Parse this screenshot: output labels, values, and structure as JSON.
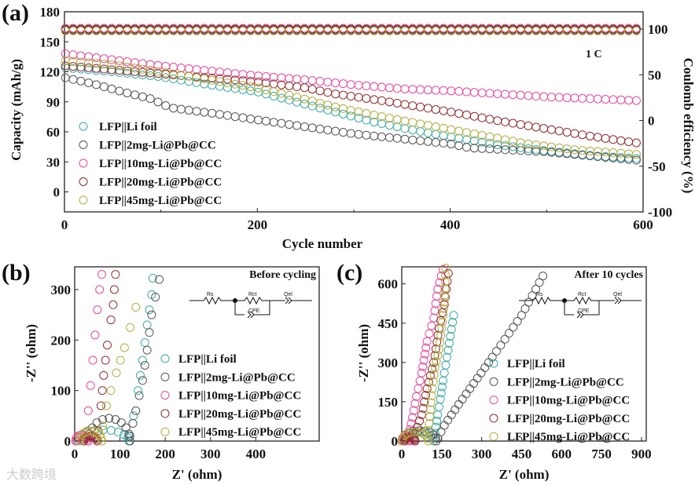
{
  "colors": {
    "li_foil": "#3aa9a9",
    "2mg": "#555555",
    "10mg": "#e8459b",
    "20mg": "#8e2b30",
    "45mg": "#b3ad3f"
  },
  "watermark": "大数跨境",
  "chart_data": [
    {
      "panel_label": "(a)",
      "type": "scatter",
      "xlabel": "Cycle number",
      "ylabel": "Capacity (mAh/g)",
      "ylabel_right": "Coulomb efficiency (%)",
      "xlim": [
        0,
        600
      ],
      "ylim": [
        -20,
        180
      ],
      "ylim_right": [
        -100,
        119
      ],
      "xticks": [
        "0",
        "200",
        "400",
        "600"
      ],
      "yticks": [
        "0",
        "30",
        "60",
        "90",
        "120",
        "150",
        "180"
      ],
      "yticks_right": [
        "-100",
        "-50",
        "0",
        "50",
        "100"
      ],
      "annotation": "1 C",
      "legend_placement": "bottom-left",
      "series": [
        {
          "key": "li_foil",
          "name": "LFP||Li  foil",
          "coulomb_efficiency": 99,
          "capacity": [
            [
              1,
              124
            ],
            [
              50,
              120
            ],
            [
              100,
              115
            ],
            [
              150,
              107
            ],
            [
              200,
              100
            ],
            [
              240,
              90
            ],
            [
              280,
              80
            ],
            [
              320,
              70
            ],
            [
              360,
              62
            ],
            [
              400,
              55
            ],
            [
              450,
              47
            ],
            [
              500,
              41
            ],
            [
              550,
              36
            ],
            [
              600,
              33
            ]
          ]
        },
        {
          "key": "2mg",
          "name": "LFP||2mg-Li@Pb@CC",
          "coulomb_efficiency": 99,
          "capacity": [
            [
              1,
              114
            ],
            [
              30,
              108
            ],
            [
              60,
              100
            ],
            [
              90,
              93
            ],
            [
              110,
              84
            ],
            [
              150,
              79
            ],
            [
              200,
              72
            ],
            [
              250,
              65
            ],
            [
              300,
              58
            ],
            [
              350,
              53
            ],
            [
              400,
              48
            ],
            [
              420,
              44
            ],
            [
              500,
              40
            ],
            [
              600,
              31
            ]
          ]
        },
        {
          "key": "10mg",
          "name": "LFP||10mg-Li@Pb@CC",
          "coulomb_efficiency": 101,
          "capacity": [
            [
              1,
              138
            ],
            [
              50,
              132
            ],
            [
              100,
              126
            ],
            [
              150,
              121
            ],
            [
              200,
              116
            ],
            [
              250,
              112
            ],
            [
              300,
              107
            ],
            [
              350,
              103
            ],
            [
              400,
              101
            ],
            [
              450,
              98
            ],
            [
              500,
              95
            ],
            [
              550,
              93
            ],
            [
              600,
              91
            ]
          ]
        },
        {
          "key": "20mg",
          "name": "LFP||20mg-Li@Pb@CC",
          "coulomb_efficiency": 100,
          "capacity": [
            [
              1,
              126
            ],
            [
              50,
              122
            ],
            [
              100,
              118
            ],
            [
              150,
              114
            ],
            [
              200,
              110
            ],
            [
              250,
              104
            ],
            [
              280,
              98
            ],
            [
              330,
              91
            ],
            [
              400,
              80
            ],
            [
              450,
              71
            ],
            [
              500,
              63
            ],
            [
              550,
              55
            ],
            [
              600,
              48
            ]
          ]
        },
        {
          "key": "45mg",
          "name": "LFP||45mg-Li@Pb@CC",
          "coulomb_efficiency": 98,
          "capacity": [
            [
              1,
              131
            ],
            [
              50,
              127
            ],
            [
              100,
              120
            ],
            [
              150,
              112
            ],
            [
              200,
              104
            ],
            [
              240,
              95
            ],
            [
              280,
              85
            ],
            [
              330,
              75
            ],
            [
              380,
              66
            ],
            [
              430,
              57
            ],
            [
              480,
              48
            ],
            [
              530,
              42
            ],
            [
              600,
              37
            ]
          ]
        }
      ]
    },
    {
      "panel_label": "(b)",
      "type": "scatter",
      "title": "Before cycling",
      "xlabel": "Z' (ohm)",
      "ylabel": "-Z'' (ohm)",
      "xlim": [
        0,
        540
      ],
      "ylim": [
        0,
        345
      ],
      "xticks": [
        "0",
        "100",
        "200",
        "300",
        "400"
      ],
      "yticks": [
        "0",
        "100",
        "200",
        "300"
      ],
      "circuit": {
        "r1": "Rs",
        "r2": "Rct",
        "q1": "Qel",
        "q2": "CPE"
      },
      "series": [
        {
          "key": "li_foil",
          "name": "LFP||Li  foil",
          "arc": [
            5,
            120,
            22
          ],
          "tail": [
            [
              120,
              10
            ],
            [
              130,
              50
            ],
            [
              140,
              100
            ],
            [
              150,
              160
            ],
            [
              160,
              230
            ],
            [
              170,
              290
            ],
            [
              175,
              355
            ]
          ]
        },
        {
          "key": "2mg",
          "name": "LFP||2mg-Li@Pb@CC",
          "arc": [
            30,
            122,
            45
          ],
          "tail": [
            [
              122,
              10
            ],
            [
              135,
              60
            ],
            [
              150,
              120
            ],
            [
              160,
              180
            ],
            [
              170,
              250
            ],
            [
              195,
              355
            ]
          ]
        },
        {
          "key": "10mg",
          "name": "LFP||10mg-Li@Pb@CC",
          "arc": [
            2,
            30,
            12
          ],
          "tail": [
            [
              28,
              20
            ],
            [
              30,
              60
            ],
            [
              35,
              110
            ],
            [
              40,
              160
            ],
            [
              45,
              210
            ],
            [
              50,
              260
            ],
            [
              55,
              300
            ],
            [
              60,
              330
            ]
          ]
        },
        {
          "key": "20mg",
          "name": "LFP||20mg-Li@Pb@CC",
          "arc": [
            20,
            50,
            10
          ],
          "tail": [
            [
              52,
              20
            ],
            [
              58,
              70
            ],
            [
              64,
              130
            ],
            [
              72,
              190
            ],
            [
              80,
              240
            ],
            [
              85,
              270
            ],
            [
              90,
              330
            ]
          ]
        },
        {
          "key": "45mg",
          "name": "LFP||45mg-Li@Pb@CC",
          "arc": [
            10,
            60,
            20
          ],
          "tail": [
            [
              62,
              30
            ],
            [
              70,
              70
            ],
            [
              80,
              100
            ],
            [
              92,
              135
            ],
            [
              110,
              185
            ],
            [
              135,
              265
            ]
          ]
        }
      ]
    },
    {
      "panel_label": "(c)",
      "type": "scatter",
      "title": "After 10 cycles",
      "xlabel": "Z' (ohm)",
      "ylabel": "-Z'' (ohm)",
      "xlim": [
        0,
        918
      ],
      "ylim": [
        0,
        665
      ],
      "xticks": [
        "0",
        "150",
        "300",
        "450",
        "600",
        "750",
        "900"
      ],
      "yticks": [
        "0",
        "150",
        "300",
        "450",
        "600"
      ],
      "circuit": {
        "r1": "Rs",
        "r2": "Rct",
        "q1": "Qel",
        "q2": "CPE"
      },
      "series": [
        {
          "key": "li_foil",
          "name": "LFP||Li foil",
          "arc": [
            0,
            120,
            35
          ],
          "tail": [
            [
              125,
              30
            ],
            [
              135,
              100
            ],
            [
              145,
              160
            ],
            [
              155,
              230
            ],
            [
              170,
              320
            ],
            [
              195,
              480
            ]
          ]
        },
        {
          "key": "2mg",
          "name": "LFP||2mg-Li@Pb@CC",
          "arc": [
            0,
            130,
            40
          ],
          "tail": [
            [
              135,
              10
            ],
            [
              160,
              60
            ],
            [
              200,
              120
            ],
            [
              270,
              220
            ],
            [
              340,
              320
            ],
            [
              450,
              480
            ],
            [
              530,
              630
            ]
          ]
        },
        {
          "key": "10mg",
          "name": "LFP||10mg-Li@Pb@CC",
          "arc": [
            0,
            30,
            15
          ],
          "tail": [
            [
              25,
              20
            ],
            [
              40,
              90
            ],
            [
              55,
              170
            ],
            [
              75,
              260
            ],
            [
              95,
              380
            ],
            [
              120,
              470
            ],
            [
              135,
              580
            ],
            [
              155,
              655
            ]
          ]
        },
        {
          "key": "20mg",
          "name": "LFP||20mg-Li@Pb@CC",
          "arc": [
            10,
            50,
            15
          ],
          "tail": [
            [
              50,
              30
            ],
            [
              75,
              100
            ],
            [
              95,
              200
            ],
            [
              120,
              300
            ],
            [
              140,
              430
            ],
            [
              160,
              520
            ],
            [
              175,
              640
            ]
          ]
        },
        {
          "key": "45mg",
          "name": "LFP||45mg-Li@Pb@CC",
          "arc": [
            0,
            100,
            35
          ],
          "tail": [
            [
              100,
              40
            ],
            [
              108,
              120
            ],
            [
              115,
              200
            ],
            [
              125,
              280
            ],
            [
              140,
              350
            ],
            [
              150,
              430
            ],
            [
              160,
              530
            ],
            [
              165,
              660
            ]
          ]
        }
      ]
    }
  ]
}
